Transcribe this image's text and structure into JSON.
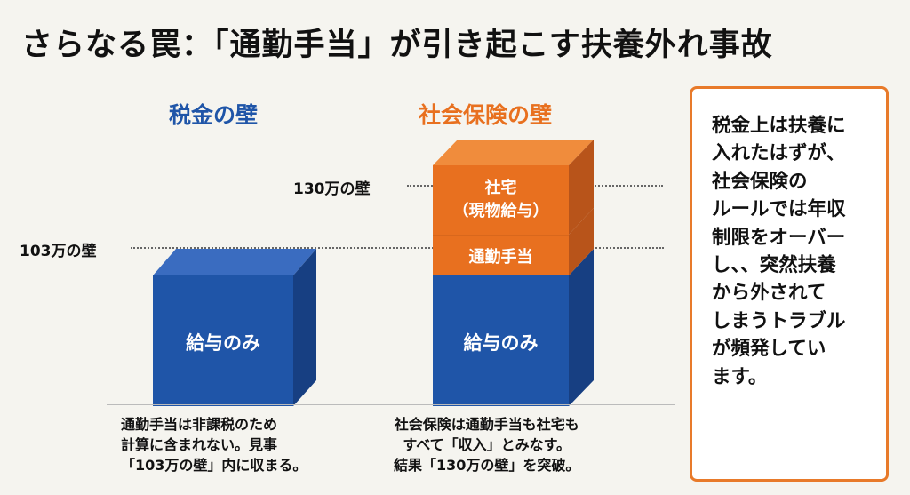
{
  "title": "さらなる罠：「通勤手当」が引き起こす扶養外れ事故",
  "left_column": {
    "heading": "税金の壁",
    "wall_label": "103万の壁",
    "box_label": "給与のみ",
    "caption": "通勤手当は非課税のため\n計算に含まれない。見事\n「103万の壁」内に収まる。"
  },
  "right_column": {
    "heading": "社会保険の壁",
    "wall_label": "130万の壁",
    "top_box_label": "社宅\n（現物給与）",
    "middle_box_label": "通勤手当",
    "bottom_box_label": "給与のみ",
    "caption": "社会保険は通勤手当も社宅も\nすべて「収入」とみなす。\n結果「130万の壁」を突破。"
  },
  "note": "税金上は扶養に\n入れたはずが、\n社会保険の\nルールでは年収\n制限をオーバー\nし、、突然扶養\nから外されて\nしまうトラブル\nが頻発してい\nます。",
  "colors": {
    "blue": "#1f55a8",
    "orange": "#e8701f",
    "note_border": "#e87a2a"
  }
}
